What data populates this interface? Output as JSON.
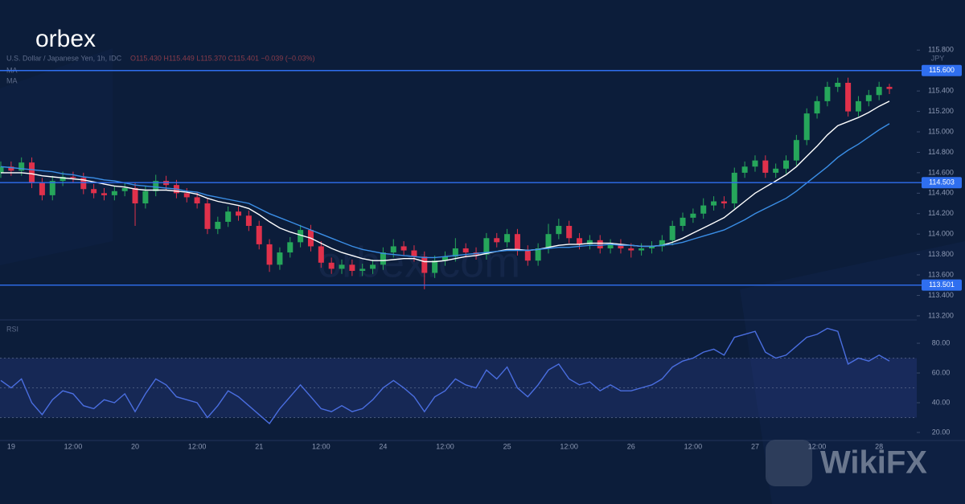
{
  "branding": {
    "logo": "orbex",
    "watermark": "orbex.com",
    "badge": "WikiFX"
  },
  "chart_data": [
    {
      "type": "candlestick",
      "title": "U.S. Dollar / Japanese Yen, 1h, IDC",
      "ohlc_readout": "O115.430 H115.449 L115.370 C115.401 −0.039 (−0.03%)",
      "currency": "JPY",
      "categories": [
        null,
        "19",
        null,
        null,
        null,
        null,
        null,
        "12:00",
        null,
        null,
        null,
        null,
        null,
        "20",
        null,
        null,
        null,
        null,
        null,
        "12:00",
        null,
        null,
        null,
        null,
        null,
        "21",
        null,
        null,
        null,
        null,
        null,
        "12:00",
        null,
        null,
        null,
        null,
        null,
        "24",
        null,
        null,
        null,
        null,
        null,
        "12:00",
        null,
        null,
        null,
        null,
        null,
        "25",
        null,
        null,
        null,
        null,
        null,
        "12:00",
        null,
        null,
        null,
        null,
        null,
        "26",
        null,
        null,
        null,
        null,
        null,
        "12:00",
        null,
        null,
        null,
        null,
        null,
        "27",
        null,
        null,
        null,
        null,
        null,
        "12:00",
        null,
        null,
        null,
        null,
        null,
        "28",
        null
      ],
      "open": [
        114.6,
        114.66,
        114.62,
        114.7,
        114.5,
        114.38,
        114.52,
        114.56,
        114.55,
        114.44,
        114.4,
        114.38,
        114.42,
        114.45,
        114.3,
        114.42,
        114.52,
        114.48,
        114.4,
        114.36,
        114.3,
        114.05,
        114.12,
        114.22,
        114.18,
        114.08,
        113.9,
        113.7,
        113.82,
        113.92,
        114.04,
        113.88,
        113.72,
        113.66,
        113.7,
        113.64,
        113.66,
        113.7,
        113.82,
        113.88,
        113.84,
        113.78,
        113.62,
        113.74,
        113.78,
        113.86,
        113.82,
        113.8,
        113.96,
        113.92,
        114.0,
        113.84,
        113.74,
        113.86,
        114.0,
        114.08,
        113.96,
        113.9,
        113.94,
        113.86,
        113.9,
        113.86,
        113.84,
        113.86,
        113.88,
        113.94,
        114.08,
        114.16,
        114.2,
        114.28,
        114.32,
        114.3,
        114.6,
        114.66,
        114.72,
        114.6,
        114.64,
        114.72,
        114.92,
        115.18,
        115.3,
        115.44,
        115.48,
        115.2,
        115.3,
        115.36,
        115.44
      ],
      "high": [
        114.71,
        114.71,
        114.75,
        114.75,
        114.55,
        114.57,
        114.61,
        114.61,
        114.6,
        114.49,
        114.45,
        114.47,
        114.5,
        114.5,
        114.47,
        114.58,
        114.57,
        114.53,
        114.45,
        114.41,
        114.35,
        114.17,
        114.27,
        114.27,
        114.23,
        114.13,
        113.95,
        113.87,
        113.97,
        114.09,
        114.09,
        113.93,
        113.77,
        113.75,
        113.75,
        113.71,
        113.75,
        113.87,
        113.95,
        113.93,
        113.89,
        113.83,
        113.79,
        113.83,
        113.96,
        113.91,
        113.87,
        114.01,
        114.01,
        114.05,
        114.05,
        113.89,
        113.91,
        114.1,
        114.15,
        114.13,
        114.01,
        113.99,
        113.99,
        113.95,
        113.95,
        113.91,
        113.91,
        113.93,
        113.99,
        114.13,
        114.21,
        114.25,
        114.35,
        114.37,
        114.37,
        114.65,
        114.71,
        114.77,
        114.77,
        114.69,
        114.77,
        114.97,
        115.23,
        115.35,
        115.49,
        115.53,
        115.53,
        115.35,
        115.41,
        115.49,
        115.47
      ],
      "low": [
        114.55,
        114.57,
        114.57,
        114.45,
        114.33,
        114.33,
        114.47,
        114.5,
        114.39,
        114.35,
        114.33,
        114.33,
        114.37,
        114.08,
        114.25,
        114.37,
        114.43,
        114.35,
        114.31,
        114.25,
        114.0,
        114.0,
        114.07,
        114.13,
        114.03,
        113.85,
        113.63,
        113.65,
        113.77,
        113.87,
        113.83,
        113.67,
        113.61,
        113.61,
        113.59,
        113.59,
        113.61,
        113.65,
        113.77,
        113.79,
        113.73,
        113.46,
        113.57,
        113.69,
        113.73,
        113.77,
        113.75,
        113.75,
        113.87,
        113.87,
        113.79,
        113.69,
        113.69,
        113.81,
        113.95,
        113.91,
        113.85,
        113.85,
        113.81,
        113.81,
        113.81,
        113.77,
        113.79,
        113.81,
        113.83,
        113.89,
        114.03,
        114.11,
        114.15,
        114.23,
        114.25,
        114.25,
        114.55,
        114.61,
        114.55,
        114.55,
        114.59,
        114.67,
        114.87,
        115.13,
        115.25,
        115.39,
        115.15,
        115.15,
        115.25,
        115.31,
        115.37
      ],
      "close": [
        114.66,
        114.62,
        114.7,
        114.5,
        114.38,
        114.52,
        114.56,
        114.55,
        114.44,
        114.4,
        114.38,
        114.42,
        114.45,
        114.3,
        114.42,
        114.52,
        114.48,
        114.4,
        114.36,
        114.3,
        114.05,
        114.12,
        114.22,
        114.18,
        114.08,
        113.9,
        113.7,
        113.82,
        113.92,
        114.04,
        113.88,
        113.72,
        113.66,
        113.7,
        113.64,
        113.66,
        113.7,
        113.82,
        113.88,
        113.84,
        113.78,
        113.62,
        113.74,
        113.78,
        113.86,
        113.82,
        113.8,
        113.96,
        113.92,
        114.0,
        113.84,
        113.74,
        113.86,
        114.0,
        114.08,
        113.96,
        113.9,
        113.94,
        113.86,
        113.9,
        113.86,
        113.84,
        113.86,
        113.88,
        113.94,
        114.08,
        114.16,
        114.2,
        114.28,
        114.32,
        114.3,
        114.6,
        114.66,
        114.72,
        114.6,
        114.64,
        114.72,
        114.92,
        115.18,
        115.3,
        115.44,
        115.48,
        115.2,
        115.3,
        115.36,
        115.44,
        115.42
      ],
      "up_color": "#26a65b",
      "down_color": "#e0314b",
      "series": [
        {
          "name": "MA",
          "color": "#ffffff",
          "values": [
            114.6,
            114.6,
            114.6,
            114.59,
            114.57,
            114.56,
            114.55,
            114.54,
            114.53,
            114.51,
            114.49,
            114.47,
            114.46,
            114.44,
            114.43,
            114.43,
            114.43,
            114.42,
            114.41,
            114.39,
            114.35,
            114.32,
            114.3,
            114.28,
            114.25,
            114.19,
            114.12,
            114.06,
            114.02,
            113.99,
            113.96,
            113.91,
            113.86,
            113.82,
            113.79,
            113.76,
            113.74,
            113.74,
            113.75,
            113.76,
            113.76,
            113.73,
            113.73,
            113.74,
            113.76,
            113.78,
            113.79,
            113.81,
            113.83,
            113.85,
            113.85,
            113.84,
            113.85,
            113.87,
            113.89,
            113.9,
            113.9,
            113.91,
            113.91,
            113.91,
            113.9,
            113.89,
            113.88,
            113.88,
            113.89,
            113.92,
            113.96,
            114.01,
            114.06,
            114.11,
            114.16,
            114.24,
            114.32,
            114.4,
            114.46,
            114.52,
            114.58,
            114.66,
            114.76,
            114.86,
            114.97,
            115.06,
            115.1,
            115.14,
            115.19,
            115.25,
            115.3
          ]
        },
        {
          "name": "MA",
          "color": "#3a8ee6",
          "values": [
            114.66,
            114.65,
            114.64,
            114.63,
            114.62,
            114.61,
            114.59,
            114.58,
            114.56,
            114.55,
            114.53,
            114.52,
            114.5,
            114.48,
            114.47,
            114.46,
            114.45,
            114.44,
            114.42,
            114.41,
            114.38,
            114.36,
            114.34,
            114.32,
            114.3,
            114.25,
            114.2,
            114.16,
            114.12,
            114.08,
            114.04,
            114.0,
            113.96,
            113.92,
            113.88,
            113.85,
            113.83,
            113.81,
            113.8,
            113.79,
            113.78,
            113.77,
            113.77,
            113.78,
            113.79,
            113.8,
            113.81,
            113.82,
            113.83,
            113.84,
            113.84,
            113.84,
            113.85,
            113.86,
            113.87,
            113.87,
            113.88,
            113.89,
            113.89,
            113.9,
            113.89,
            113.89,
            113.88,
            113.88,
            113.89,
            113.9,
            113.92,
            113.95,
            113.98,
            114.01,
            114.04,
            114.09,
            114.14,
            114.2,
            114.25,
            114.3,
            114.35,
            114.42,
            114.5,
            114.58,
            114.66,
            114.75,
            114.82,
            114.88,
            114.95,
            115.02,
            115.08
          ]
        }
      ],
      "levels": [
        {
          "value": 115.6,
          "label": "115.600"
        },
        {
          "value": 114.503,
          "label": "114.503"
        },
        {
          "value": 113.501,
          "label": "113.501"
        }
      ],
      "level_color": "#2f6ff0",
      "ylim": [
        113.16,
        116.29
      ],
      "yticks": [
        {
          "value": 113.2,
          "label": "113.200"
        },
        {
          "value": 113.4,
          "label": "113.400"
        },
        {
          "value": 113.6,
          "label": "113.600"
        },
        {
          "value": 113.8,
          "label": "113.800"
        },
        {
          "value": 114.0,
          "label": "114.000"
        },
        {
          "value": 114.2,
          "label": "114.200"
        },
        {
          "value": 114.4,
          "label": "114.400"
        },
        {
          "value": 114.6,
          "label": "114.600"
        },
        {
          "value": 114.8,
          "label": "114.800"
        },
        {
          "value": 115.0,
          "label": "115.000"
        },
        {
          "value": 115.2,
          "label": "115.200"
        },
        {
          "value": 115.4,
          "label": "115.400"
        },
        {
          "value": 115.8,
          "label": "115.800"
        }
      ]
    },
    {
      "type": "line",
      "title": "RSI",
      "series": [
        {
          "name": "RSI",
          "color": "#4a6ee0",
          "values": [
            55,
            50,
            56,
            40,
            32,
            42,
            48,
            46,
            38,
            36,
            42,
            40,
            46,
            34,
            46,
            56,
            52,
            44,
            42,
            40,
            30,
            38,
            48,
            44,
            38,
            32,
            26,
            36,
            44,
            52,
            44,
            36,
            34,
            38,
            34,
            36,
            42,
            50,
            55,
            50,
            44,
            34,
            44,
            48,
            56,
            52,
            50,
            62,
            56,
            64,
            50,
            44,
            52,
            62,
            66,
            56,
            52,
            54,
            48,
            52,
            48,
            48,
            50,
            52,
            56,
            64,
            68,
            70,
            74,
            76,
            72,
            84,
            86,
            88,
            74,
            70,
            72,
            78,
            84,
            86,
            90,
            88,
            66,
            70,
            68,
            72,
            68
          ]
        }
      ],
      "band": [
        30,
        70
      ],
      "band_color": "#2a3f8a",
      "reference_lines": [
        30,
        50,
        70
      ],
      "ylim": [
        14.6,
        95.7
      ],
      "yticks": [
        {
          "value": 20,
          "label": "20.00"
        },
        {
          "value": 40,
          "label": "40.00"
        },
        {
          "value": 60,
          "label": "60.00"
        },
        {
          "value": 80,
          "label": "80.00"
        }
      ]
    }
  ]
}
